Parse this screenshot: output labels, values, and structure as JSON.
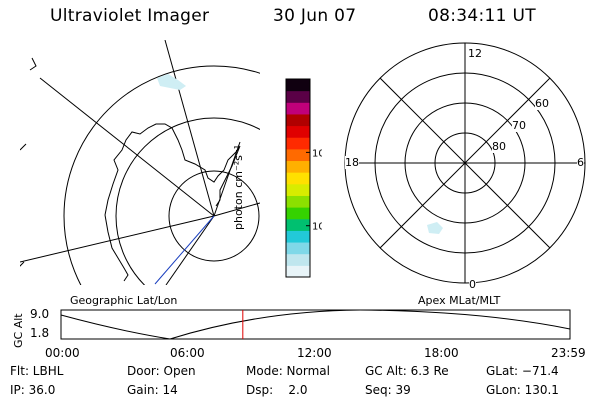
{
  "header": {
    "instrument": "Ultraviolet Imager",
    "date": "30 Jun 07",
    "time": "08:34:11 UT"
  },
  "map_label": "Geographic Lat/Lon",
  "polar_label": "Apex MLat/MLT",
  "polar": {
    "mlt_labels": {
      "top": "12",
      "left": "18",
      "right": "6",
      "bottom": "0"
    },
    "lat_labels": [
      "60",
      "70",
      "80"
    ]
  },
  "colorbar": {
    "unit": "photon cm⁻²s⁻¹",
    "ticks": [
      {
        "value": 100,
        "label": "100"
      },
      {
        "value": 10,
        "label": "10"
      }
    ],
    "colors": [
      "#e8f4f8",
      "#bfe6ee",
      "#7fd8e8",
      "#22c9d8",
      "#00c070",
      "#35d200",
      "#8ce000",
      "#d8ec00",
      "#ffe000",
      "#ffb000",
      "#ff6a00",
      "#ff2a00",
      "#e00000",
      "#b00000",
      "#c0007a",
      "#5a0046",
      "#100010"
    ]
  },
  "altitude_plot": {
    "ylabel": "GC Alt",
    "yticks": [
      "9.0",
      "1.8"
    ],
    "xticks": [
      "00:00",
      "06:00",
      "12:00",
      "18:00",
      "23:59"
    ],
    "current_time_fraction": 0.3572,
    "marker_color": "#e00000"
  },
  "status": {
    "filter": "Flt: LBHL",
    "door": "Door: Open",
    "mode": "Mode: Normal",
    "gc_alt": "GC Alt: 6.3 Re",
    "glat": "GLat: −71.4",
    "ip": "IP: 36.0",
    "gain": "Gain: 14",
    "dsp": "Dsp:    2.0",
    "seq": "Seq: 39",
    "glon": "GLon: 130.1"
  }
}
